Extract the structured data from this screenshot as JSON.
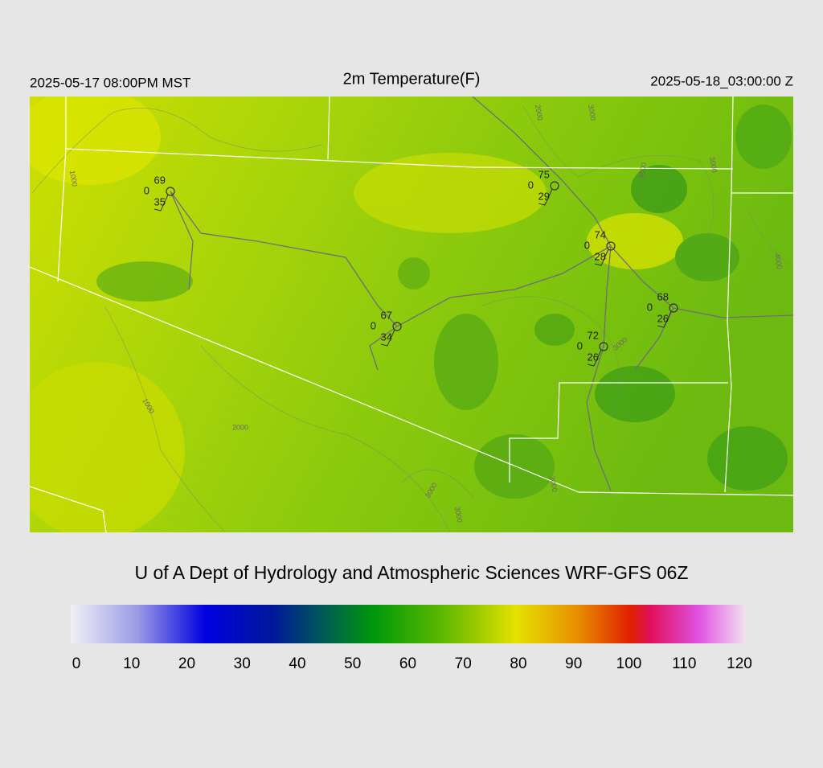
{
  "header": {
    "local_time": "2025-05-17 08:00PM MST",
    "title": "2m Temperature(F)",
    "valid_time": "2025-05-18_03:00:00 Z"
  },
  "stations": [
    {
      "temperature": 69,
      "wind": 0,
      "dewpoint": 35
    },
    {
      "temperature": 75,
      "wind": 0,
      "dewpoint": 29
    },
    {
      "temperature": 74,
      "wind": 0,
      "dewpoint": 28
    },
    {
      "temperature": 68,
      "wind": 0,
      "dewpoint": 26
    },
    {
      "temperature": 67,
      "wind": 0,
      "dewpoint": 34
    },
    {
      "temperature": 72,
      "wind": 0,
      "dewpoint": 26
    }
  ],
  "contour_labels": [
    "1000",
    "2000",
    "3000",
    "4000",
    "3000",
    "4000",
    "1000",
    "2000",
    "3000",
    "3000",
    "3000",
    "3000"
  ],
  "credit": "U of A Dept of Hydrology and Atmospheric Sciences WRF-GFS 06Z",
  "colorbar": {
    "ticks": [
      0,
      10,
      20,
      30,
      40,
      50,
      60,
      70,
      80,
      90,
      100,
      110,
      120
    ]
  }
}
